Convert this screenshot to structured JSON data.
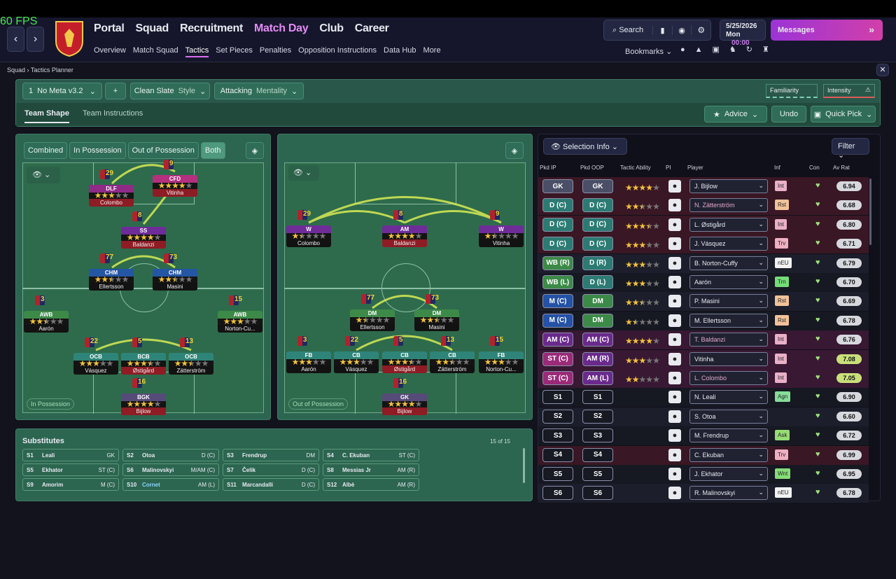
{
  "fps": "60 FPS",
  "nav": {
    "items": [
      "Portal",
      "Squad",
      "Recruitment",
      "Match Day",
      "Club",
      "Career"
    ],
    "subitems": [
      "Overview",
      "Match Squad",
      "Tactics",
      "Set Pieces",
      "Penalties",
      "Opposition Instructions",
      "Data Hub",
      "More"
    ],
    "search": "Search",
    "date": "5/25/2026",
    "day": "Mon",
    "time": "00:00",
    "messages": "Messages",
    "bookmarks": "Bookmarks"
  },
  "breadcrumb": [
    "Squad",
    "Tactics Planner"
  ],
  "toolbar": {
    "slot": "1",
    "tactic": "No Meta v3.2",
    "style_value": "Clean Slate",
    "style_label": "Style",
    "mentality_value": "Attacking",
    "mentality_label": "Mentality",
    "familiarity": "Familiarity",
    "intensity": "Intensity",
    "tabs": [
      "Team Shape",
      "Team Instructions"
    ],
    "advice": "Advice",
    "undo": "Undo",
    "quick_pick": "Quick Pick"
  },
  "left_pitch": {
    "modes": [
      "Combined",
      "In Possession",
      "Out of Possession",
      "Both"
    ],
    "label": "In Possession",
    "players": [
      {
        "pos": "DLF",
        "name": "Colombo",
        "number": 29,
        "stars": 3
      },
      {
        "pos": "CFD",
        "name": "Vitinha",
        "number": 9,
        "stars": 4
      },
      {
        "pos": "SS",
        "name": "Baldanzi",
        "number": 8,
        "stars": 4
      },
      {
        "pos": "CHM",
        "name": "Ellertsson",
        "number": 77,
        "stars": 2.5
      },
      {
        "pos": "CHM",
        "name": "Masini",
        "number": 73,
        "stars": 2.5
      },
      {
        "pos": "AWB",
        "name": "Aarón",
        "number": 3,
        "stars": 2.5
      },
      {
        "pos": "AWB",
        "name": "Norton-Cu...",
        "number": 15,
        "stars": 3
      },
      {
        "pos": "OCB",
        "name": "Vásquez",
        "number": 22,
        "stars": 3
      },
      {
        "pos": "BCB",
        "name": "Østigård",
        "number": 5,
        "stars": 3.5
      },
      {
        "pos": "OCB",
        "name": "Zätterström",
        "number": 13,
        "stars": 2.5
      },
      {
        "pos": "BGK",
        "name": "Bijlow",
        "number": 16,
        "stars": 4
      }
    ]
  },
  "right_pitch": {
    "label": "Out of Possession",
    "players": [
      {
        "pos": "W",
        "name": "Colombo",
        "number": 29,
        "stars": 1.5
      },
      {
        "pos": "AM",
        "name": "Baldanzi",
        "number": 8,
        "stars": 4
      },
      {
        "pos": "W",
        "name": "Vitinha",
        "number": 9,
        "stars": 1.5
      },
      {
        "pos": "DM",
        "name": "Ellertsson",
        "number": 77,
        "stars": 1.5
      },
      {
        "pos": "DM",
        "name": "Masini",
        "number": 73,
        "stars": 2.5
      },
      {
        "pos": "FB",
        "name": "Aarón",
        "number": 3,
        "stars": 3
      },
      {
        "pos": "CB",
        "name": "Vásquez",
        "number": 22,
        "stars": 3
      },
      {
        "pos": "CB",
        "name": "Østigård",
        "number": 5,
        "stars": 3.5
      },
      {
        "pos": "CB",
        "name": "Zätterström",
        "number": 13,
        "stars": 2.5
      },
      {
        "pos": "FB",
        "name": "Norton-Cu...",
        "number": 15,
        "stars": 3
      },
      {
        "pos": "GK",
        "name": "Bijlow",
        "number": 16,
        "stars": 4
      }
    ]
  },
  "substitutes": {
    "title": "Substitutes",
    "count": "15 of 15",
    "rows": [
      [
        "S1",
        "Leali",
        "GK"
      ],
      [
        "S2",
        "Otoa",
        "D (C)"
      ],
      [
        "S3",
        "Frendrup",
        "DM"
      ],
      [
        "S4",
        "C. Ekuban",
        "ST (C)"
      ],
      [
        "S5",
        "Ekhator",
        "ST (C)"
      ],
      [
        "S6",
        "Malinovskyi",
        "M/AM (C)"
      ],
      [
        "S7",
        "Čelik",
        "D (C)"
      ],
      [
        "S8",
        "Messias Jr",
        "AM (R)"
      ],
      [
        "S9",
        "Amorim",
        "M (C)"
      ],
      [
        "S10",
        "Cornet",
        "AM (L)"
      ],
      [
        "S11",
        "Marcandalli",
        "D (C)"
      ],
      [
        "S12",
        "Albè",
        "AM (R)"
      ]
    ]
  },
  "selection": {
    "title": "Selection Info",
    "filter": "Filter",
    "columns": [
      "Pkd IP",
      "Pkd OOP",
      "Tactic Ability",
      "PI",
      "Player",
      "Inf",
      "Con",
      "Av Rat"
    ],
    "rows": [
      {
        "ip": "GK",
        "oop": "GK",
        "stars": 4,
        "player": "J. Bijlow",
        "inf": "Int",
        "rat": "6.94"
      },
      {
        "ip": "D (C)",
        "oop": "D (C)",
        "stars": 2.5,
        "player": "N. Zätterström",
        "inf": "Rst",
        "rat": "6.68"
      },
      {
        "ip": "D (C)",
        "oop": "D (C)",
        "stars": 3.5,
        "player": "L. Østigård",
        "inf": "Int",
        "rat": "6.80"
      },
      {
        "ip": "D (C)",
        "oop": "D (C)",
        "stars": 3,
        "player": "J. Vásquez",
        "inf": "Trv",
        "rat": "6.71"
      },
      {
        "ip": "WB (R)",
        "oop": "D (R)",
        "stars": 3,
        "player": "B. Norton-Cuffy",
        "inf": "nEU",
        "rat": "6.79"
      },
      {
        "ip": "WB (L)",
        "oop": "D (L)",
        "stars": 3,
        "player": "Aarón",
        "inf": "Trn",
        "rat": "6.70"
      },
      {
        "ip": "M (C)",
        "oop": "DM",
        "stars": 2.5,
        "player": "P. Masini",
        "inf": "Rst",
        "rat": "6.69"
      },
      {
        "ip": "M (C)",
        "oop": "DM",
        "stars": 1.5,
        "player": "M. Ellertsson",
        "inf": "Rst",
        "rat": "6.78"
      },
      {
        "ip": "AM (C)",
        "oop": "AM (C)",
        "stars": 4,
        "player": "T. Baldanzi",
        "inf": "Int",
        "rat": "6.76"
      },
      {
        "ip": "ST (C)",
        "oop": "AM (R)",
        "stars": 3,
        "player": "Vitinha",
        "inf": "Int",
        "rat": "7.08"
      },
      {
        "ip": "ST (C)",
        "oop": "AM (L)",
        "stars": 2,
        "player": "L. Colombo",
        "inf": "Int",
        "rat": "7.05"
      },
      {
        "ip": "S1",
        "oop": "S1",
        "stars": null,
        "player": "N. Leali",
        "inf": "Agn",
        "rat": "6.90"
      },
      {
        "ip": "S2",
        "oop": "S2",
        "stars": null,
        "player": "S. Otoa",
        "inf": null,
        "rat": "6.60"
      },
      {
        "ip": "S3",
        "oop": "S3",
        "stars": null,
        "player": "M. Frendrup",
        "inf": "Ask",
        "rat": "6.72"
      },
      {
        "ip": "S4",
        "oop": "S4",
        "stars": null,
        "player": "C. Ekuban",
        "inf": "Trv",
        "rat": "6.99"
      },
      {
        "ip": "S5",
        "oop": "S5",
        "stars": null,
        "player": "J. Ekhator",
        "inf": "Wnt",
        "rat": "6.95"
      },
      {
        "ip": "S6",
        "oop": "S6",
        "stars": null,
        "player": "R. Malinovskyi",
        "inf": "nEU",
        "rat": "6.78"
      }
    ]
  }
}
